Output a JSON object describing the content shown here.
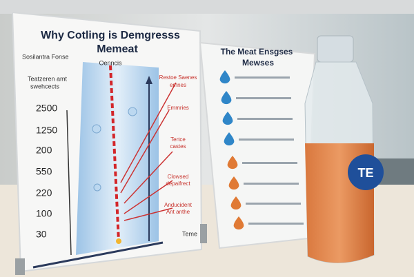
{
  "left_sign": {
    "title": [
      "Why Cotling is Demgresss",
      "Memeat"
    ],
    "side_label": "Sosilantra Fonse",
    "sub_label": [
      "Teatzeren amt",
      "swehcects"
    ],
    "column_label": "Oenncis",
    "scale_labels": [
      "2500",
      "1250",
      "200",
      "550",
      "220",
      "100",
      "30"
    ],
    "annotations": [
      "Restoe Saenes",
      "emnes",
      "Emmries",
      "Tertce",
      "castes",
      "Clowsed",
      "depaifrect",
      "Anducident",
      "Ant anthe"
    ],
    "footer": "Teme"
  },
  "right_sign": {
    "title": [
      "The Meat Ensgses",
      "Mewses"
    ]
  },
  "bottle": {
    "label": "TE"
  }
}
